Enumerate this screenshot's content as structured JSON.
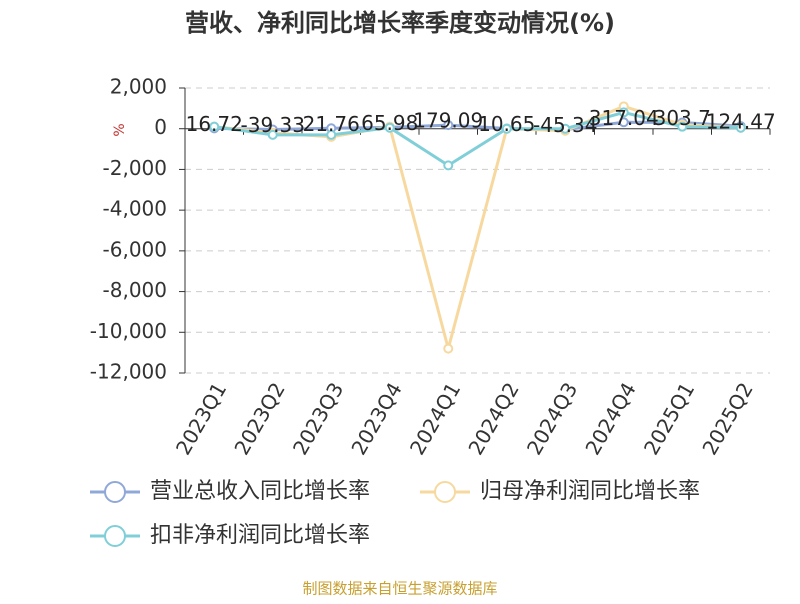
{
  "chart_data": {
    "type": "line",
    "title": "营收、净利同比增长率季度变动情况(%)",
    "y_label": "%",
    "categories": [
      "2023Q1",
      "2023Q2",
      "2023Q3",
      "2023Q4",
      "2024Q1",
      "2024Q2",
      "2024Q3",
      "2024Q4",
      "2025Q1",
      "2025Q2"
    ],
    "series": [
      {
        "name": "营业总收入同比增长率",
        "color": "#8fa8d8",
        "values": [
          16.72,
          -39.33,
          21.76,
          65.98,
          179.09,
          10.65,
          -45.34,
          317.04,
          303.7,
          124.47
        ]
      },
      {
        "name": "归母净利润同比增长率",
        "color": "#f7d9a0",
        "values": [
          100,
          -200,
          -400,
          100,
          -10800,
          0,
          -100,
          1100,
          200,
          50
        ]
      },
      {
        "name": "扣非净利润同比增长率",
        "color": "#80cfd8",
        "values": [
          100,
          -300,
          -300,
          50,
          -1800,
          0,
          0,
          800,
          100,
          50
        ]
      }
    ],
    "ylim": [
      -12000,
      2000
    ],
    "yticks": [
      {
        "value": 2000,
        "label": "2,000"
      },
      0,
      {
        "value": -2000,
        "label": "-2,000"
      },
      {
        "value": -4000,
        "label": "-4,000"
      },
      {
        "value": -6000,
        "label": "-6,000"
      },
      {
        "value": -8000,
        "label": "-8,000"
      },
      {
        "value": -10000,
        "label": "-10,000"
      },
      {
        "value": -12000,
        "label": "-12,000"
      }
    ],
    "grid": true,
    "source": "制图数据来自恒生聚源数据库"
  }
}
